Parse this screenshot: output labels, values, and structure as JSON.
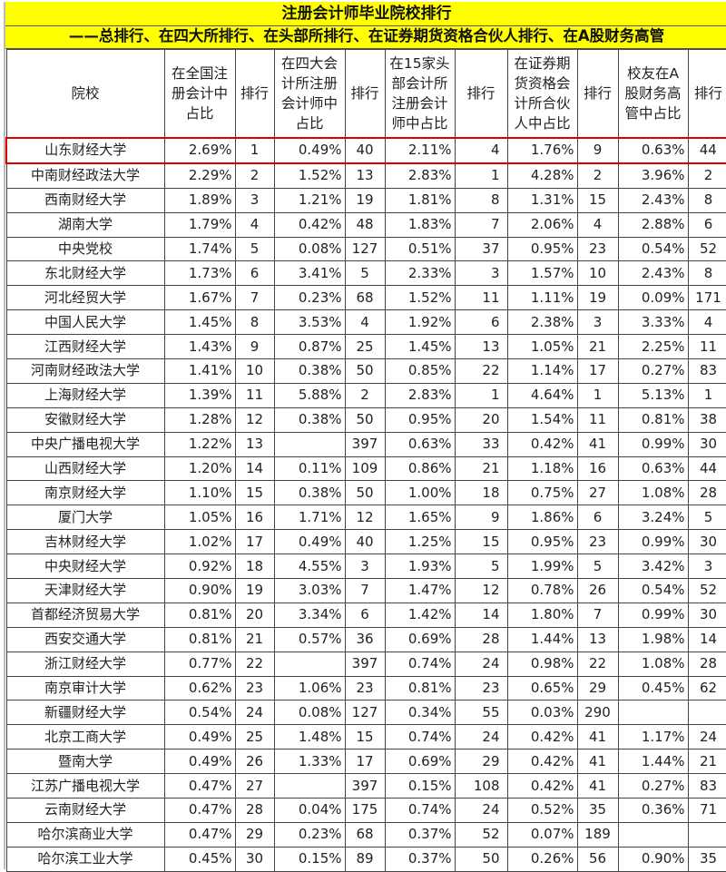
{
  "title": "注册会计师毕业院校排行",
  "subtitle": "——总排行、在四大所排行、在头部所排行、在证券期货资格合伙人排行、在A股财务高管",
  "highlight_color": "#e00000",
  "title_bg": "#ffff00",
  "headers": [
    "院校",
    "在全国注册会计中占比",
    "排行",
    "在四大会计所注册会计师中占比",
    "排行",
    "在15家头部会计所注册会计师中占比",
    "排行",
    "在证券期货资格会计所合伙人中占比",
    "排行",
    "校友在A股财务高管中占比",
    "排行"
  ],
  "rows": [
    [
      "山东财经大学",
      "2.69%",
      "1",
      "0.49%",
      "40",
      "2.11%",
      "4",
      "1.76%",
      "9",
      "0.63%",
      "44"
    ],
    [
      "中南财经政法大学",
      "2.29%",
      "2",
      "1.52%",
      "13",
      "2.83%",
      "1",
      "4.28%",
      "2",
      "3.96%",
      "2"
    ],
    [
      "西南财经大学",
      "1.89%",
      "3",
      "1.21%",
      "19",
      "1.81%",
      "8",
      "1.31%",
      "15",
      "2.43%",
      "8"
    ],
    [
      "湖南大学",
      "1.79%",
      "4",
      "0.42%",
      "48",
      "1.83%",
      "7",
      "2.06%",
      "4",
      "2.88%",
      "6"
    ],
    [
      "中央党校",
      "1.74%",
      "5",
      "0.08%",
      "127",
      "0.51%",
      "37",
      "0.95%",
      "23",
      "0.54%",
      "52"
    ],
    [
      "东北财经大学",
      "1.73%",
      "6",
      "3.41%",
      "5",
      "2.33%",
      "3",
      "1.57%",
      "10",
      "2.43%",
      "8"
    ],
    [
      "河北经贸大学",
      "1.67%",
      "7",
      "0.23%",
      "68",
      "1.52%",
      "11",
      "1.11%",
      "19",
      "0.09%",
      "171"
    ],
    [
      "中国人民大学",
      "1.45%",
      "8",
      "3.53%",
      "4",
      "1.92%",
      "6",
      "2.38%",
      "3",
      "3.33%",
      "4"
    ],
    [
      "江西财经大学",
      "1.43%",
      "9",
      "0.87%",
      "25",
      "1.45%",
      "13",
      "1.05%",
      "21",
      "2.25%",
      "11"
    ],
    [
      "河南财经政法大学",
      "1.41%",
      "10",
      "0.38%",
      "50",
      "0.85%",
      "22",
      "1.14%",
      "17",
      "0.27%",
      "83"
    ],
    [
      "上海财经大学",
      "1.39%",
      "11",
      "5.88%",
      "2",
      "2.83%",
      "1",
      "4.64%",
      "1",
      "5.13%",
      "1"
    ],
    [
      "安徽财经大学",
      "1.28%",
      "12",
      "0.38%",
      "50",
      "0.95%",
      "20",
      "1.54%",
      "11",
      "0.81%",
      "38"
    ],
    [
      "中央广播电视大学",
      "1.22%",
      "13",
      "",
      "397",
      "0.63%",
      "33",
      "0.42%",
      "41",
      "0.99%",
      "30"
    ],
    [
      "山西财经大学",
      "1.20%",
      "14",
      "0.11%",
      "109",
      "0.86%",
      "21",
      "1.18%",
      "16",
      "0.63%",
      "44"
    ],
    [
      "南京财经大学",
      "1.10%",
      "15",
      "0.38%",
      "50",
      "1.00%",
      "18",
      "0.75%",
      "27",
      "1.08%",
      "28"
    ],
    [
      "厦门大学",
      "1.05%",
      "16",
      "1.71%",
      "12",
      "1.65%",
      "9",
      "1.86%",
      "6",
      "3.24%",
      "5"
    ],
    [
      "吉林财经大学",
      "1.02%",
      "17",
      "0.49%",
      "40",
      "1.25%",
      "15",
      "0.95%",
      "23",
      "0.99%",
      "30"
    ],
    [
      "中央财经大学",
      "0.92%",
      "18",
      "4.55%",
      "3",
      "1.93%",
      "5",
      "1.99%",
      "5",
      "3.42%",
      "3"
    ],
    [
      "天津财经大学",
      "0.90%",
      "19",
      "3.03%",
      "7",
      "1.47%",
      "12",
      "0.78%",
      "26",
      "0.54%",
      "52"
    ],
    [
      "首都经济贸易大学",
      "0.81%",
      "20",
      "3.34%",
      "6",
      "1.42%",
      "14",
      "1.80%",
      "7",
      "0.99%",
      "30"
    ],
    [
      "西安交通大学",
      "0.81%",
      "21",
      "0.57%",
      "36",
      "0.69%",
      "28",
      "1.44%",
      "13",
      "1.98%",
      "14"
    ],
    [
      "浙江财经大学",
      "0.77%",
      "22",
      "",
      "397",
      "0.74%",
      "24",
      "0.98%",
      "22",
      "1.08%",
      "28"
    ],
    [
      "南京审计大学",
      "0.62%",
      "23",
      "1.06%",
      "23",
      "0.81%",
      "23",
      "0.65%",
      "29",
      "0.45%",
      "62"
    ],
    [
      "新疆财经大学",
      "0.54%",
      "24",
      "0.08%",
      "127",
      "0.34%",
      "55",
      "0.03%",
      "290",
      "",
      ""
    ],
    [
      "北京工商大学",
      "0.49%",
      "25",
      "1.48%",
      "15",
      "0.74%",
      "24",
      "0.42%",
      "41",
      "1.17%",
      "24"
    ],
    [
      "暨南大学",
      "0.49%",
      "26",
      "1.33%",
      "17",
      "0.69%",
      "29",
      "0.42%",
      "41",
      "1.44%",
      "21"
    ],
    [
      "江苏广播电视大学",
      "0.47%",
      "27",
      "",
      "397",
      "0.15%",
      "108",
      "0.42%",
      "41",
      "0.27%",
      "83"
    ],
    [
      "云南财经大学",
      "0.47%",
      "28",
      "0.04%",
      "175",
      "0.74%",
      "24",
      "0.52%",
      "35",
      "0.36%",
      "71"
    ],
    [
      "哈尔滨商业大学",
      "0.47%",
      "29",
      "0.23%",
      "68",
      "0.37%",
      "52",
      "0.07%",
      "189",
      "",
      ""
    ],
    [
      "哈尔滨工业大学",
      "0.45%",
      "30",
      "0.15%",
      "89",
      "0.37%",
      "50",
      "0.26%",
      "56",
      "0.90%",
      "35"
    ]
  ]
}
